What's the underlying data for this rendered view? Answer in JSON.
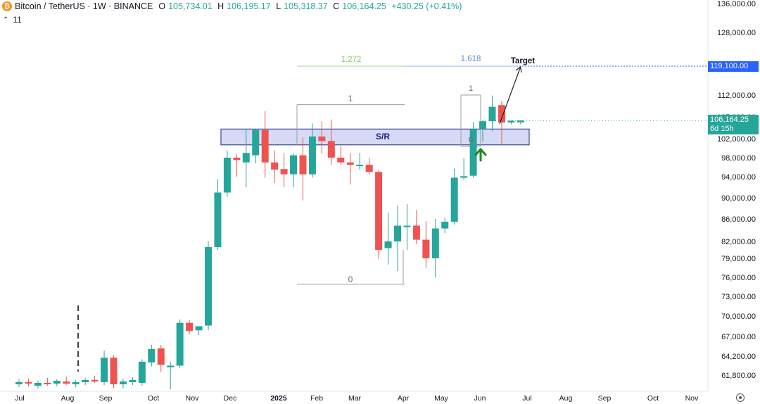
{
  "header": {
    "symbol": "Bitcoin / TetherUS · 1W · BINANCE",
    "coin_letter": "₿",
    "open_key": "O",
    "open": "105,734.01",
    "high_key": "H",
    "high": "106,195.17",
    "low_key": "L",
    "low": "105,318.37",
    "close_key": "C",
    "close": "106,164.25",
    "change": "+430.25 (+0.41%)"
  },
  "indicator_toggle": {
    "chevron": "⌃",
    "count": "11"
  },
  "price_labels": {
    "target_level": "119,100.00",
    "current_price": "106,164.25",
    "countdown": "6d 15h"
  },
  "annotations": {
    "zone_label": "S/R",
    "target_label": "Target",
    "fib_1272": "1.272",
    "fib_1618": "1.618",
    "fib_top_one": "1",
    "fib_bottom_zero": "0",
    "fib_small_one": "1",
    "fib_small_zero": "0"
  },
  "colors": {
    "up": "#26a69a",
    "down": "#ef5350",
    "zone": "#c5caf3",
    "target_line": "#2962ff",
    "arrow": "#1b8a1b"
  },
  "chart_data": {
    "type": "candlestick",
    "title": "Bitcoin / TetherUS · 1W · BINANCE",
    "y_axis_ticks": [
      136000,
      128000,
      119100,
      112000,
      107000,
      102000,
      98000,
      94000,
      90000,
      86000,
      82000,
      79000,
      76000,
      73000,
      70000,
      67000,
      64200,
      61800
    ],
    "y_axis_labels": [
      "136,000.00",
      "128,000.00",
      "119,100.00",
      "112,000.00",
      "107,000.00",
      "102,000.00",
      "98,000.00",
      "94,000.00",
      "90,000.00",
      "86,000.00",
      "82,000.00",
      "79,000.00",
      "76,000.00",
      "73,000.00",
      "70,000.00",
      "67,000.00",
      "64,200.00",
      "61,800.00"
    ],
    "x_axis_labels": [
      "Jul",
      "Aug",
      "Sep",
      "Oct",
      "Nov",
      "Dec",
      "2025",
      "Feb",
      "Mar",
      "Apr",
      "May",
      "Jun",
      "Jul",
      "Aug",
      "Sep",
      "Oct",
      "Nov"
    ],
    "candles": [
      {
        "o": 60500,
        "h": 61200,
        "l": 60100,
        "c": 60800
      },
      {
        "o": 60800,
        "h": 61300,
        "l": 60200,
        "c": 60600
      },
      {
        "o": 60300,
        "h": 61000,
        "l": 59900,
        "c": 60700
      },
      {
        "o": 60700,
        "h": 61400,
        "l": 60300,
        "c": 60500
      },
      {
        "o": 60600,
        "h": 61200,
        "l": 60200,
        "c": 61000
      },
      {
        "o": 60900,
        "h": 61600,
        "l": 60400,
        "c": 60600
      },
      {
        "o": 60500,
        "h": 61100,
        "l": 60100,
        "c": 60800
      },
      {
        "o": 60800,
        "h": 61400,
        "l": 60400,
        "c": 61100
      },
      {
        "o": 61100,
        "h": 61700,
        "l": 60700,
        "c": 60900
      },
      {
        "o": 60800,
        "h": 65000,
        "l": 60400,
        "c": 64000
      },
      {
        "o": 64000,
        "h": 64300,
        "l": 60000,
        "c": 60500
      },
      {
        "o": 60500,
        "h": 61300,
        "l": 59900,
        "c": 60900
      },
      {
        "o": 60800,
        "h": 61500,
        "l": 60400,
        "c": 61100
      },
      {
        "o": 60700,
        "h": 63800,
        "l": 60300,
        "c": 63500
      },
      {
        "o": 63400,
        "h": 65800,
        "l": 62900,
        "c": 65200
      },
      {
        "o": 65300,
        "h": 65800,
        "l": 62200,
        "c": 63100
      },
      {
        "o": 62800,
        "h": 63500,
        "l": 59800,
        "c": 63000
      },
      {
        "o": 63000,
        "h": 69500,
        "l": 62700,
        "c": 69000
      },
      {
        "o": 69000,
        "h": 69400,
        "l": 67300,
        "c": 67800
      },
      {
        "o": 67900,
        "h": 68500,
        "l": 67200,
        "c": 68500
      },
      {
        "o": 68600,
        "h": 82000,
        "l": 67900,
        "c": 81000
      },
      {
        "o": 81000,
        "h": 93500,
        "l": 80500,
        "c": 91000
      },
      {
        "o": 91000,
        "h": 99500,
        "l": 90200,
        "c": 98000
      },
      {
        "o": 98000,
        "h": 98700,
        "l": 94000,
        "c": 97500
      },
      {
        "o": 97000,
        "h": 104000,
        "l": 92000,
        "c": 99000
      },
      {
        "o": 98500,
        "h": 104100,
        "l": 96800,
        "c": 104000
      },
      {
        "o": 104000,
        "h": 108300,
        "l": 93800,
        "c": 97000
      },
      {
        "o": 97000,
        "h": 99500,
        "l": 92800,
        "c": 95500
      },
      {
        "o": 95600,
        "h": 99000,
        "l": 92000,
        "c": 94500
      },
      {
        "o": 94500,
        "h": 99000,
        "l": 92000,
        "c": 98500
      },
      {
        "o": 98500,
        "h": 102300,
        "l": 89500,
        "c": 94500
      },
      {
        "o": 94500,
        "h": 105500,
        "l": 93800,
        "c": 102500
      },
      {
        "o": 102500,
        "h": 106000,
        "l": 98900,
        "c": 101500
      },
      {
        "o": 101500,
        "h": 106400,
        "l": 96500,
        "c": 98000
      },
      {
        "o": 98000,
        "h": 100500,
        "l": 96500,
        "c": 97000
      },
      {
        "o": 97000,
        "h": 99000,
        "l": 92500,
        "c": 96500
      },
      {
        "o": 96500,
        "h": 99000,
        "l": 95500,
        "c": 96500
      },
      {
        "o": 96500,
        "h": 97900,
        "l": 94400,
        "c": 95000
      },
      {
        "o": 95000,
        "h": 95400,
        "l": 78900,
        "c": 80500
      },
      {
        "o": 80800,
        "h": 87200,
        "l": 78000,
        "c": 82000
      },
      {
        "o": 82000,
        "h": 88500,
        "l": 77000,
        "c": 84800
      },
      {
        "o": 84800,
        "h": 88800,
        "l": 80500,
        "c": 84800
      },
      {
        "o": 84800,
        "h": 87700,
        "l": 81500,
        "c": 82300
      },
      {
        "o": 82300,
        "h": 85600,
        "l": 77500,
        "c": 79000
      },
      {
        "o": 79000,
        "h": 86000,
        "l": 76000,
        "c": 84300
      },
      {
        "o": 84300,
        "h": 86200,
        "l": 83500,
        "c": 85500
      },
      {
        "o": 85500,
        "h": 95700,
        "l": 85000,
        "c": 93800
      },
      {
        "o": 93800,
        "h": 97900,
        "l": 93400,
        "c": 94100
      },
      {
        "o": 94200,
        "h": 105800,
        "l": 93800,
        "c": 104200
      },
      {
        "o": 104200,
        "h": 106200,
        "l": 101300,
        "c": 106000
      },
      {
        "o": 106000,
        "h": 111900,
        "l": 103700,
        "c": 109300
      },
      {
        "o": 109700,
        "h": 110600,
        "l": 100900,
        "c": 105700
      },
      {
        "o": 105700,
        "h": 106200,
        "l": 105300,
        "c": 106100
      },
      {
        "o": 105734.01,
        "h": 106195.17,
        "l": 105318.37,
        "c": 106164.25
      }
    ],
    "support_resistance_zone": {
      "top": 104200,
      "bottom": 100700,
      "label": "S/R"
    },
    "fib_1272_level": 119100,
    "fib_1618_level": 119100,
    "fib_swing_high": 109800,
    "fib_swing_low": 74900,
    "target_level": 119100,
    "current_price": 106164.25
  }
}
